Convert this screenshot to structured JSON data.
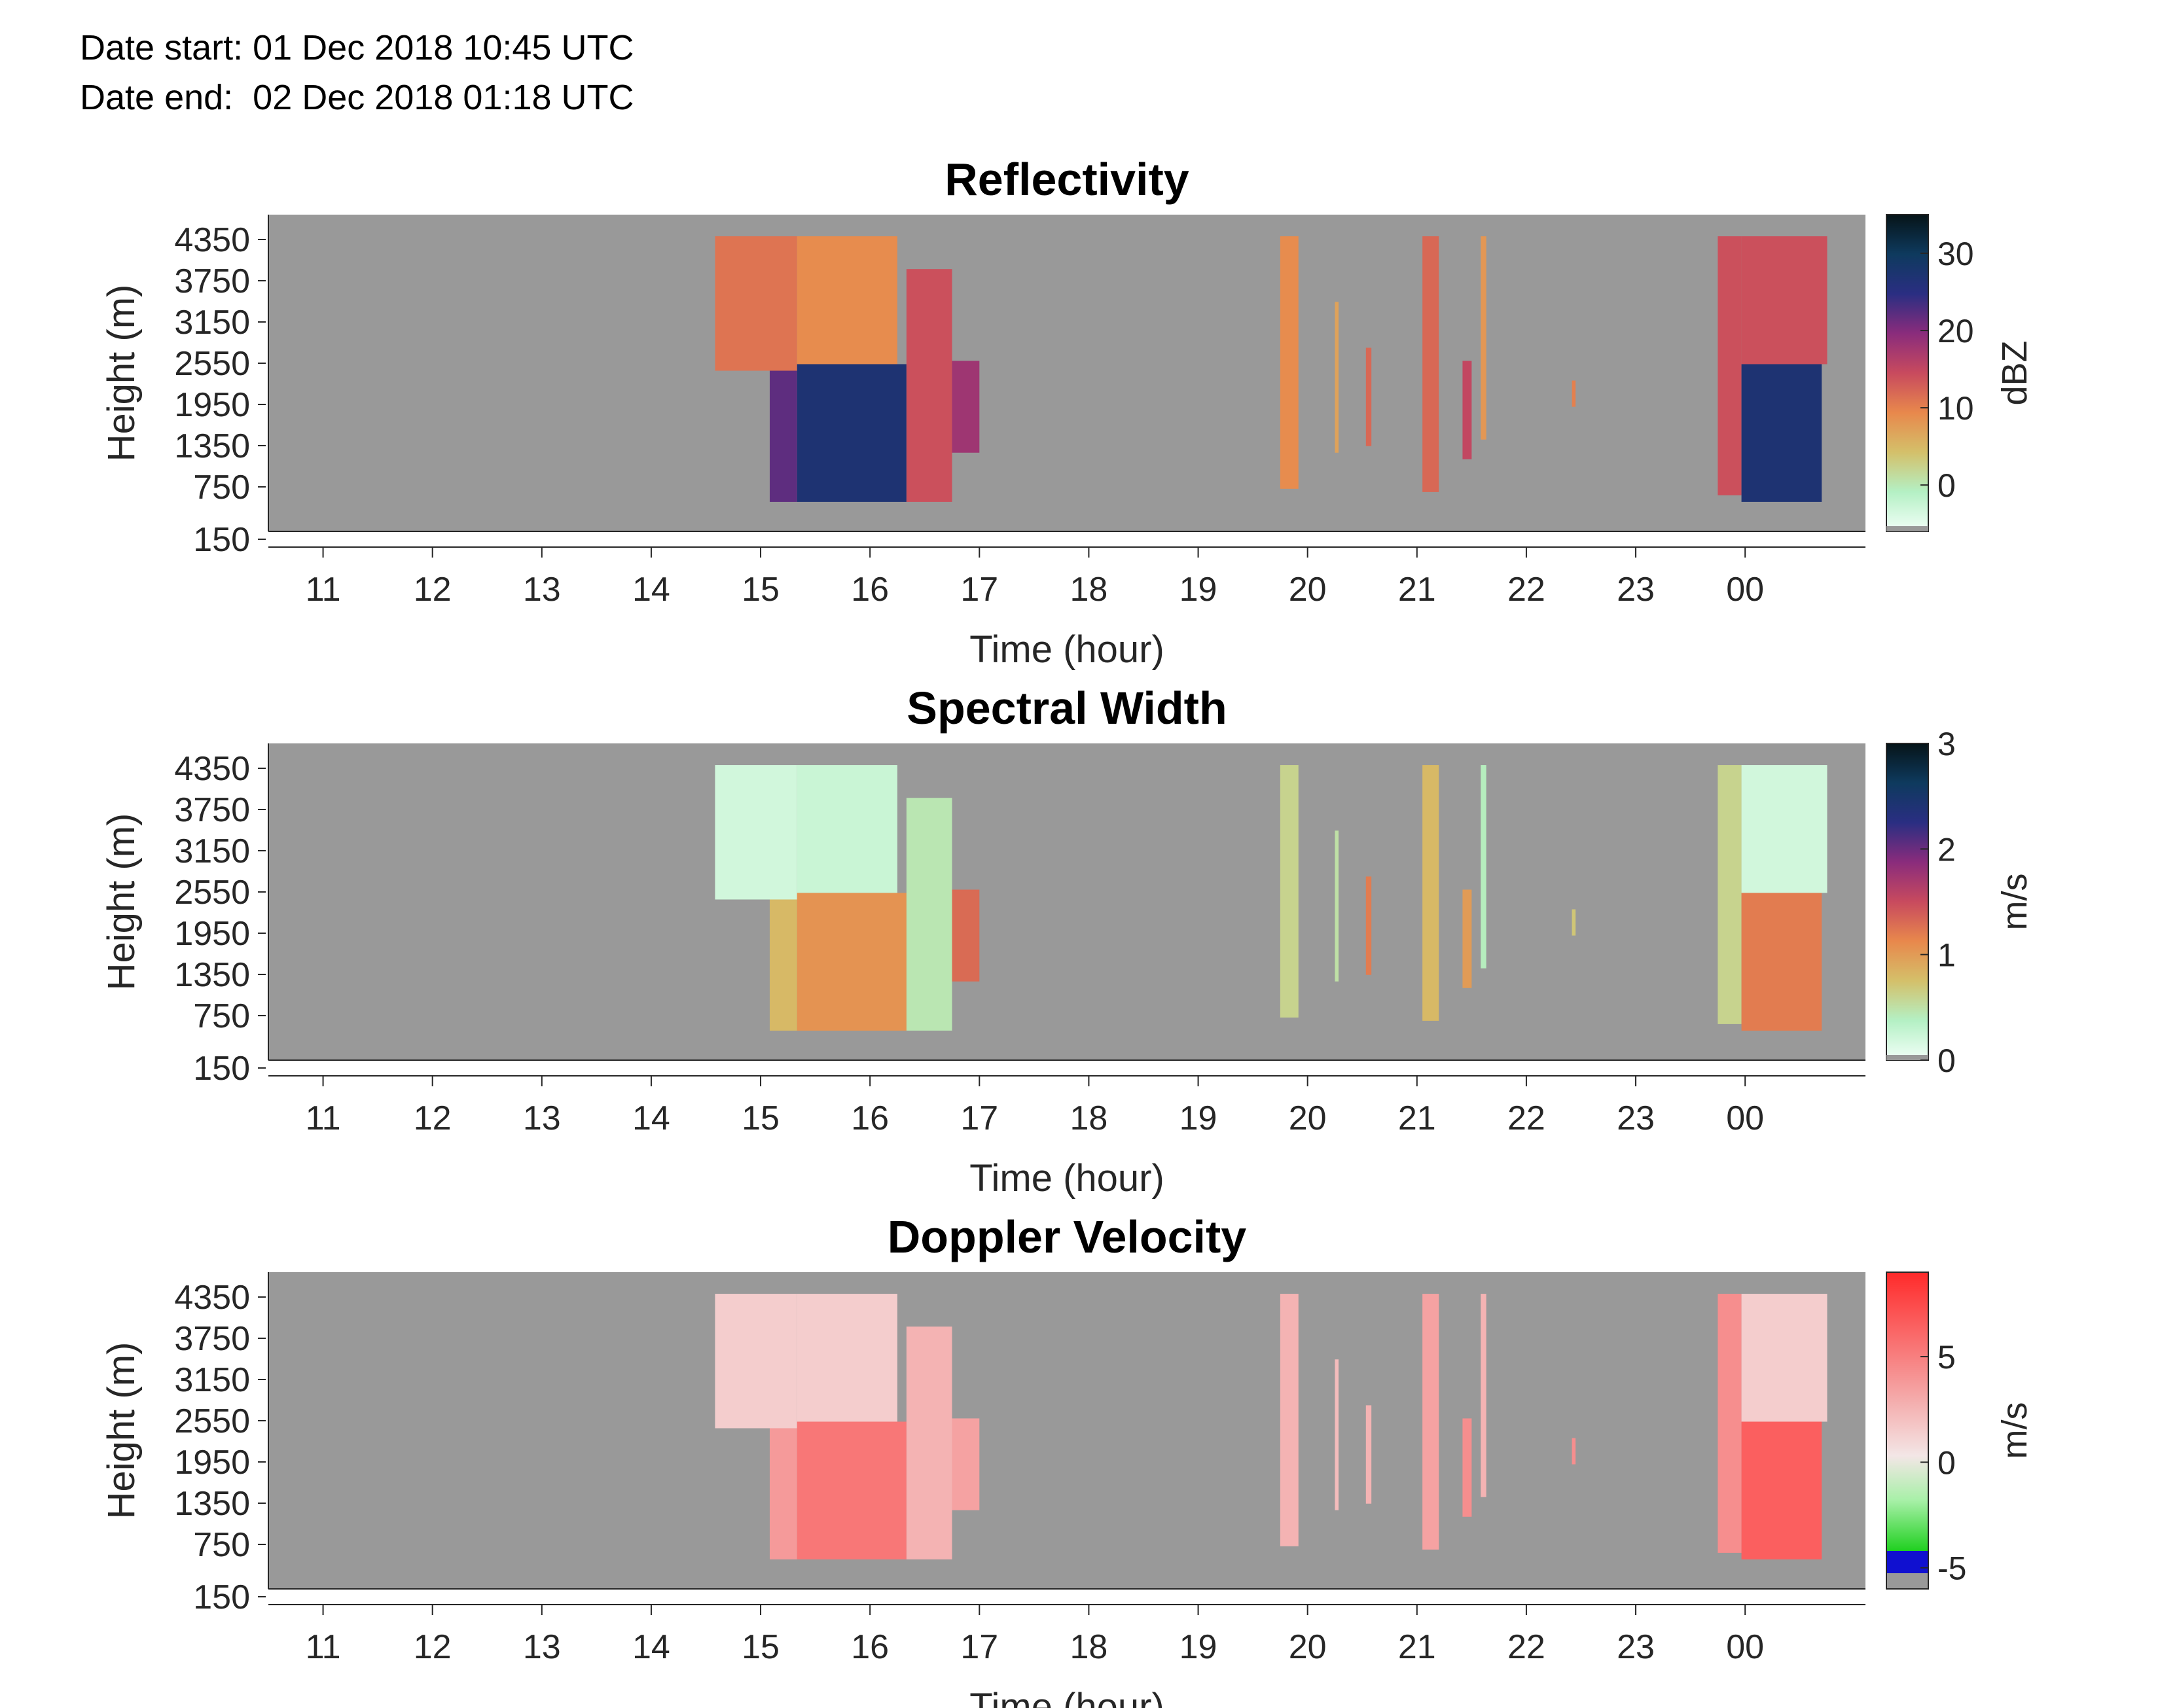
{
  "header": {
    "date_start": "Date start: 01 Dec 2018 10:45 UTC",
    "date_end": "Date end:  02 Dec 2018 01:18 UTC"
  },
  "chart_data": [
    {
      "type": "heatmap",
      "title": "Reflectivity",
      "xlabel": "Time (hour)",
      "ylabel": "Height (m)",
      "colorbar_label": "dBZ",
      "x_tick_labels": [
        "11",
        "12",
        "13",
        "14",
        "15",
        "16",
        "17",
        "18",
        "19",
        "20",
        "21",
        "22",
        "23",
        "00"
      ],
      "y_tick_labels": [
        "4350",
        "3750",
        "3150",
        "2550",
        "1950",
        "1350",
        "750",
        "150"
      ],
      "colorbar_ticks": [
        "30",
        "20",
        "10",
        "0"
      ],
      "colorbar_range": [
        -6,
        35
      ],
      "colormap": [
        "#f2fff8",
        "#b4f0c4",
        "#d4c06a",
        "#e8884c",
        "#c84a5e",
        "#8a2c7c",
        "#2a2e82",
        "#0e3a5e",
        "#061418"
      ],
      "background_color": "#999999",
      "echoes": [
        {
          "start": "14:35",
          "end": "15:20",
          "base_m": 2450,
          "top_m": 4500,
          "dbz": 11
        },
        {
          "start": "15:05",
          "end": "15:20",
          "base_m": 450,
          "top_m": 2450,
          "dbz": 22
        },
        {
          "start": "15:20",
          "end": "16:15",
          "base_m": 2550,
          "top_m": 4500,
          "dbz": 9
        },
        {
          "start": "15:20",
          "end": "16:20",
          "base_m": 450,
          "top_m": 2550,
          "dbz": 27
        },
        {
          "start": "16:20",
          "end": "16:45",
          "base_m": 450,
          "top_m": 4000,
          "dbz": 14
        },
        {
          "start": "16:45",
          "end": "17:00",
          "base_m": 1200,
          "top_m": 2600,
          "dbz": 18
        },
        {
          "start": "19:45",
          "end": "19:55",
          "base_m": 650,
          "top_m": 4500,
          "dbz": 9
        },
        {
          "start": "20:15",
          "end": "20:17",
          "base_m": 1200,
          "top_m": 3500,
          "dbz": 7
        },
        {
          "start": "20:32",
          "end": "20:35",
          "base_m": 1300,
          "top_m": 2800,
          "dbz": 12
        },
        {
          "start": "21:03",
          "end": "21:12",
          "base_m": 600,
          "top_m": 4500,
          "dbz": 12
        },
        {
          "start": "21:25",
          "end": "21:30",
          "base_m": 1100,
          "top_m": 2600,
          "dbz": 15
        },
        {
          "start": "21:35",
          "end": "21:38",
          "base_m": 1400,
          "top_m": 4500,
          "dbz": 8
        },
        {
          "start": "22:25",
          "end": "22:27",
          "base_m": 1900,
          "top_m": 2300,
          "dbz": 10
        },
        {
          "start": "23:45",
          "end": "23:58",
          "base_m": 550,
          "top_m": 4500,
          "dbz": 14
        },
        {
          "start": "23:58",
          "end": "00:45",
          "base_m": 2550,
          "top_m": 4500,
          "dbz": 14
        },
        {
          "start": "23:58",
          "end": "00:42",
          "base_m": 450,
          "top_m": 2550,
          "dbz": 27
        }
      ]
    },
    {
      "type": "heatmap",
      "title": "Spectral Width",
      "xlabel": "Time (hour)",
      "ylabel": "Height (m)",
      "colorbar_label": "m/s",
      "x_tick_labels": [
        "11",
        "12",
        "13",
        "14",
        "15",
        "16",
        "17",
        "18",
        "19",
        "20",
        "21",
        "22",
        "23",
        "00"
      ],
      "y_tick_labels": [
        "4350",
        "3750",
        "3150",
        "2550",
        "1950",
        "1350",
        "750",
        "150"
      ],
      "colorbar_ticks": [
        "3",
        "2",
        "1",
        "0"
      ],
      "colorbar_range": [
        0,
        3
      ],
      "colormap": [
        "#f2fff8",
        "#b4f0c4",
        "#d4c06a",
        "#e8884c",
        "#c84a5e",
        "#8a2c7c",
        "#2a2e82",
        "#0e3a5e",
        "#061418"
      ],
      "background_color": "#999999",
      "echoes": [
        {
          "start": "14:35",
          "end": "15:20",
          "base_m": 2450,
          "top_m": 4500,
          "sw": 0.2
        },
        {
          "start": "15:05",
          "end": "15:20",
          "base_m": 450,
          "top_m": 2450,
          "sw": 0.8
        },
        {
          "start": "15:20",
          "end": "16:15",
          "base_m": 2550,
          "top_m": 4500,
          "sw": 0.25
        },
        {
          "start": "15:20",
          "end": "16:20",
          "base_m": 450,
          "top_m": 2550,
          "sw": 1.05
        },
        {
          "start": "16:20",
          "end": "16:45",
          "base_m": 450,
          "top_m": 4000,
          "sw": 0.45
        },
        {
          "start": "16:45",
          "end": "17:00",
          "base_m": 1200,
          "top_m": 2600,
          "sw": 1.3
        },
        {
          "start": "19:45",
          "end": "19:55",
          "base_m": 650,
          "top_m": 4500,
          "sw": 0.6
        },
        {
          "start": "20:15",
          "end": "20:17",
          "base_m": 1200,
          "top_m": 3500,
          "sw": 0.5
        },
        {
          "start": "20:32",
          "end": "20:35",
          "base_m": 1300,
          "top_m": 2800,
          "sw": 1.2
        },
        {
          "start": "21:03",
          "end": "21:12",
          "base_m": 600,
          "top_m": 4500,
          "sw": 0.8
        },
        {
          "start": "21:25",
          "end": "21:30",
          "base_m": 1100,
          "top_m": 2600,
          "sw": 1.0
        },
        {
          "start": "21:35",
          "end": "21:38",
          "base_m": 1400,
          "top_m": 4500,
          "sw": 0.4
        },
        {
          "start": "22:25",
          "end": "22:27",
          "base_m": 1900,
          "top_m": 2300,
          "sw": 0.7
        },
        {
          "start": "23:45",
          "end": "23:58",
          "base_m": 550,
          "top_m": 4500,
          "sw": 0.6
        },
        {
          "start": "23:58",
          "end": "00:45",
          "base_m": 2550,
          "top_m": 4500,
          "sw": 0.2
        },
        {
          "start": "23:58",
          "end": "00:42",
          "base_m": 450,
          "top_m": 2550,
          "sw": 1.2
        }
      ]
    },
    {
      "type": "heatmap",
      "title": "Doppler Velocity",
      "xlabel": "Time (hour)",
      "ylabel": "Height (m)",
      "colorbar_label": "m/s",
      "x_tick_labels": [
        "11",
        "12",
        "13",
        "14",
        "15",
        "16",
        "17",
        "18",
        "19",
        "20",
        "21",
        "22",
        "23",
        "00"
      ],
      "y_tick_labels": [
        "4350",
        "3750",
        "3150",
        "2550",
        "1950",
        "1350",
        "750",
        "150"
      ],
      "colorbar_ticks": [
        "5",
        "0",
        "-5"
      ],
      "colorbar_range": [
        -6,
        9
      ],
      "colormap": [
        "#ff3b3b",
        "#f7a0a0",
        "#f2e8e8",
        "#a8f0a8",
        "#30dd30",
        "#1010d0",
        "#999999"
      ],
      "background_color": "#999999",
      "echoes": [
        {
          "start": "14:35",
          "end": "15:20",
          "base_m": 2450,
          "top_m": 4500,
          "vel": 1.5
        },
        {
          "start": "15:05",
          "end": "15:20",
          "base_m": 450,
          "top_m": 2450,
          "vel": 4.5
        },
        {
          "start": "15:20",
          "end": "16:15",
          "base_m": 2550,
          "top_m": 4500,
          "vel": 1.5
        },
        {
          "start": "15:20",
          "end": "16:20",
          "base_m": 450,
          "top_m": 2550,
          "vel": 6
        },
        {
          "start": "16:20",
          "end": "16:45",
          "base_m": 450,
          "top_m": 4000,
          "vel": 3
        },
        {
          "start": "16:45",
          "end": "17:00",
          "base_m": 1200,
          "top_m": 2600,
          "vel": 4
        },
        {
          "start": "19:45",
          "end": "19:55",
          "base_m": 650,
          "top_m": 4500,
          "vel": 3
        },
        {
          "start": "20:15",
          "end": "20:17",
          "base_m": 1200,
          "top_m": 3500,
          "vel": 2.5
        },
        {
          "start": "20:32",
          "end": "20:35",
          "base_m": 1300,
          "top_m": 2800,
          "vel": 3
        },
        {
          "start": "21:03",
          "end": "21:12",
          "base_m": 600,
          "top_m": 4500,
          "vel": 4
        },
        {
          "start": "21:25",
          "end": "21:30",
          "base_m": 1100,
          "top_m": 2600,
          "vel": 5
        },
        {
          "start": "21:35",
          "end": "21:38",
          "base_m": 1400,
          "top_m": 4500,
          "vel": 3
        },
        {
          "start": "22:25",
          "end": "22:27",
          "base_m": 1900,
          "top_m": 2300,
          "vel": 5
        },
        {
          "start": "23:45",
          "end": "23:58",
          "base_m": 550,
          "top_m": 4500,
          "vel": 5
        },
        {
          "start": "23:58",
          "end": "00:45",
          "base_m": 2550,
          "top_m": 4500,
          "vel": 1.5
        },
        {
          "start": "23:58",
          "end": "00:42",
          "base_m": 450,
          "top_m": 2550,
          "vel": 7
        }
      ]
    }
  ]
}
